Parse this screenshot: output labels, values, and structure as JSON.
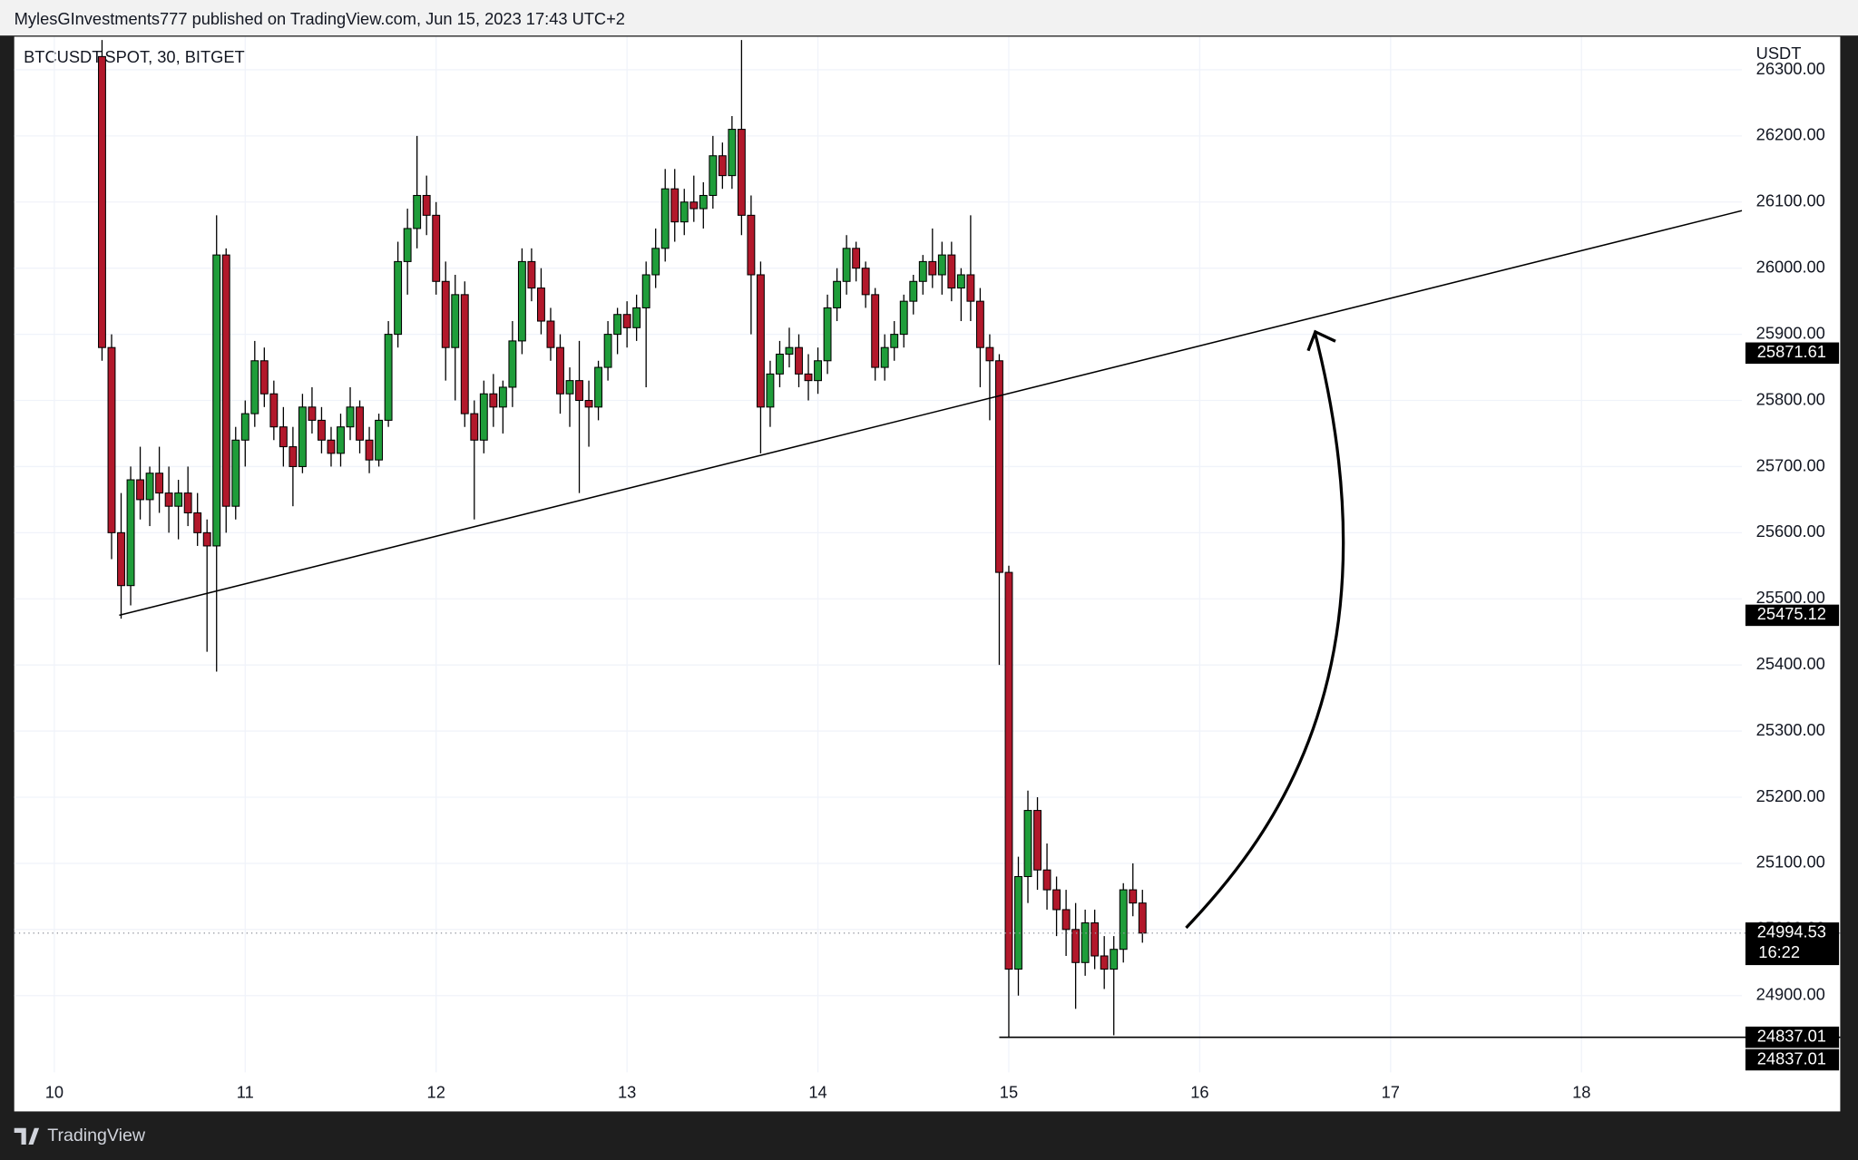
{
  "header": {
    "publisher": "MylesGInvestments777 published on TradingView.com, Jun 15, 2023 17:43 UTC+2",
    "symbol": "BTCUSDT.SPOT, 30, BITGET",
    "currency": "USDT",
    "brand": "TradingView"
  },
  "chart_data": {
    "type": "candlestick",
    "up_color": "#1f9d3a",
    "down_color": "#b2182b",
    "xlim": [
      9.79,
      18.84
    ],
    "xticks": [
      10,
      11,
      12,
      13,
      14,
      15,
      16,
      17,
      18
    ],
    "ylim": [
      24784,
      26350
    ],
    "yticks": [
      {
        "value": 24900,
        "label": "24900.00"
      },
      {
        "value": 25000,
        "label": "25000.00"
      },
      {
        "value": 25100,
        "label": "25100.00"
      },
      {
        "value": 25200,
        "label": "25200.00"
      },
      {
        "value": 25300,
        "label": "25300.00"
      },
      {
        "value": 25400,
        "label": "25400.00"
      },
      {
        "value": 25500,
        "label": "25500.00"
      },
      {
        "value": 25600,
        "label": "25600.00"
      },
      {
        "value": 25700,
        "label": "25700.00"
      },
      {
        "value": 25800,
        "label": "25800.00"
      },
      {
        "value": 25900,
        "label": "25900.00"
      },
      {
        "value": 26000,
        "label": "26000.00"
      },
      {
        "value": 26100,
        "label": "26100.00"
      },
      {
        "value": 26200,
        "label": "26200.00"
      },
      {
        "value": 26300,
        "label": "26300.00"
      }
    ],
    "x": [
      10.25,
      10.3,
      10.35,
      10.4,
      10.45,
      10.5,
      10.55,
      10.6,
      10.65,
      10.7,
      10.75,
      10.8,
      10.85,
      10.9,
      10.95,
      11,
      11.05,
      11.1,
      11.15,
      11.2,
      11.25,
      11.3,
      11.35,
      11.4,
      11.45,
      11.5,
      11.55,
      11.6,
      11.65,
      11.7,
      11.75,
      11.8,
      11.85,
      11.9,
      11.95,
      12,
      12.05,
      12.1,
      12.15,
      12.2,
      12.25,
      12.3,
      12.35,
      12.4,
      12.45,
      12.5,
      12.55,
      12.6,
      12.65,
      12.7,
      12.75,
      12.8,
      12.85,
      12.9,
      12.95,
      13,
      13.05,
      13.1,
      13.15,
      13.2,
      13.25,
      13.3,
      13.35,
      13.4,
      13.45,
      13.5,
      13.55,
      13.6,
      13.65,
      13.7,
      13.75,
      13.8,
      13.85,
      13.9,
      13.95,
      14,
      14.05,
      14.1,
      14.15,
      14.2,
      14.25,
      14.3,
      14.35,
      14.4,
      14.45,
      14.5,
      14.55,
      14.6,
      14.65,
      14.7,
      14.75,
      14.8,
      14.85,
      14.9,
      14.95,
      15,
      15.05,
      15.1,
      15.15,
      15.2,
      15.25,
      15.3,
      15.35,
      15.4,
      15.45,
      15.5,
      15.55,
      15.6,
      15.65,
      15.7
    ],
    "open": [
      26320,
      25880,
      25600,
      25520,
      25680,
      25650,
      25690,
      25660,
      25640,
      25660,
      25630,
      25600,
      25580,
      26020,
      25640,
      25740,
      25780,
      25860,
      25810,
      25760,
      25730,
      25700,
      25790,
      25770,
      25740,
      25720,
      25760,
      25790,
      25740,
      25710,
      25770,
      25900,
      26010,
      26060,
      26110,
      26080,
      25980,
      25880,
      25960,
      25780,
      25740,
      25810,
      25790,
      25820,
      25890,
      26010,
      25970,
      25920,
      25880,
      25810,
      25830,
      25800,
      25790,
      25850,
      25900,
      25930,
      25910,
      25940,
      25990,
      26030,
      26120,
      26070,
      26100,
      26090,
      26110,
      26170,
      26140,
      26210,
      26080,
      25990,
      25790,
      25840,
      25870,
      25880,
      25840,
      25830,
      25860,
      25940,
      25980,
      26030,
      26000,
      25960,
      25850,
      25880,
      25900,
      25950,
      25980,
      26010,
      25990,
      26020,
      25970,
      25990,
      25950,
      25880,
      25860,
      25540,
      24940,
      25080,
      25180,
      25090,
      25060,
      25030,
      25000,
      24950,
      25010,
      24960,
      24940,
      24970,
      25060,
      25040
    ],
    "high": [
      26345,
      25900,
      25660,
      25700,
      25730,
      25700,
      25730,
      25700,
      25680,
      25700,
      25660,
      25620,
      26080,
      26030,
      25760,
      25800,
      25890,
      25880,
      25830,
      25790,
      25760,
      25810,
      25820,
      25790,
      25760,
      25780,
      25820,
      25800,
      25760,
      25780,
      25920,
      26040,
      26090,
      26200,
      26140,
      26100,
      26010,
      25990,
      25980,
      25800,
      25830,
      25840,
      25830,
      25920,
      26030,
      26030,
      26000,
      25940,
      25900,
      25850,
      25890,
      25830,
      25860,
      25920,
      25940,
      25950,
      25960,
      26010,
      26060,
      26150,
      26150,
      26120,
      26140,
      26130,
      26200,
      26190,
      26230,
      26345,
      26110,
      26010,
      25860,
      25890,
      25910,
      25900,
      25870,
      25880,
      25960,
      26000,
      26050,
      26040,
      26010,
      25970,
      25900,
      25920,
      25960,
      25990,
      26020,
      26060,
      26040,
      26040,
      26000,
      26080,
      25970,
      25900,
      25870,
      25550,
      25110,
      25210,
      25200,
      25130,
      25080,
      25060,
      25040,
      25030,
      25030,
      24990,
      24990,
      25070,
      25100,
      25060
    ],
    "low": [
      25860,
      25560,
      25470,
      25490,
      25620,
      25610,
      25630,
      25600,
      25590,
      25610,
      25580,
      25420,
      25390,
      25600,
      25620,
      25700,
      25760,
      25790,
      25740,
      25700,
      25640,
      25690,
      25750,
      25720,
      25700,
      25700,
      25740,
      25720,
      25690,
      25700,
      25760,
      25880,
      25960,
      26030,
      26050,
      25960,
      25830,
      25800,
      25760,
      25620,
      25720,
      25760,
      25750,
      25790,
      25870,
      25950,
      25900,
      25860,
      25780,
      25760,
      25660,
      25730,
      25770,
      25830,
      25870,
      25880,
      25890,
      25820,
      25970,
      26010,
      26040,
      26050,
      26070,
      26060,
      26090,
      26120,
      26120,
      26050,
      25900,
      25720,
      25760,
      25820,
      25850,
      25820,
      25800,
      25810,
      25840,
      25920,
      25960,
      25980,
      25940,
      25830,
      25830,
      25860,
      25880,
      25930,
      25960,
      25970,
      25960,
      25950,
      25920,
      25920,
      25820,
      25770,
      25400,
      24837,
      24900,
      25040,
      25060,
      25030,
      24990,
      24960,
      24880,
      24930,
      24940,
      24910,
      24840,
      24950,
      25020,
      24980
    ],
    "close": [
      25880,
      25600,
      25520,
      25680,
      25650,
      25690,
      25660,
      25640,
      25660,
      25630,
      25600,
      25580,
      26020,
      25640,
      25740,
      25780,
      25860,
      25810,
      25760,
      25730,
      25700,
      25790,
      25770,
      25740,
      25720,
      25760,
      25790,
      25740,
      25710,
      25770,
      25900,
      26010,
      26060,
      26110,
      26080,
      25980,
      25880,
      25960,
      25780,
      25740,
      25810,
      25790,
      25820,
      25890,
      26010,
      25970,
      25920,
      25880,
      25810,
      25830,
      25800,
      25790,
      25850,
      25900,
      25930,
      25910,
      25940,
      25990,
      26030,
      26120,
      26070,
      26100,
      26090,
      26110,
      26170,
      26140,
      26210,
      26080,
      25990,
      25790,
      25840,
      25870,
      25880,
      25840,
      25830,
      25860,
      25940,
      25980,
      26030,
      26000,
      25960,
      25850,
      25880,
      25900,
      25950,
      25980,
      26010,
      25990,
      26020,
      25970,
      25990,
      25950,
      25880,
      25860,
      25540,
      24940,
      25080,
      25180,
      25090,
      25060,
      25030,
      25000,
      24950,
      25010,
      24960,
      24940,
      24970,
      25060,
      25040,
      24994.53
    ],
    "trendline": {
      "x": [
        10.34,
        18.84
      ],
      "y": [
        25475.12,
        26087
      ]
    },
    "hline_start": 14.95,
    "price_labels": [
      25871.61,
      25475.12,
      24837.01,
      24837.01
    ],
    "last_price": 24994.53,
    "countdown": "16:22"
  }
}
